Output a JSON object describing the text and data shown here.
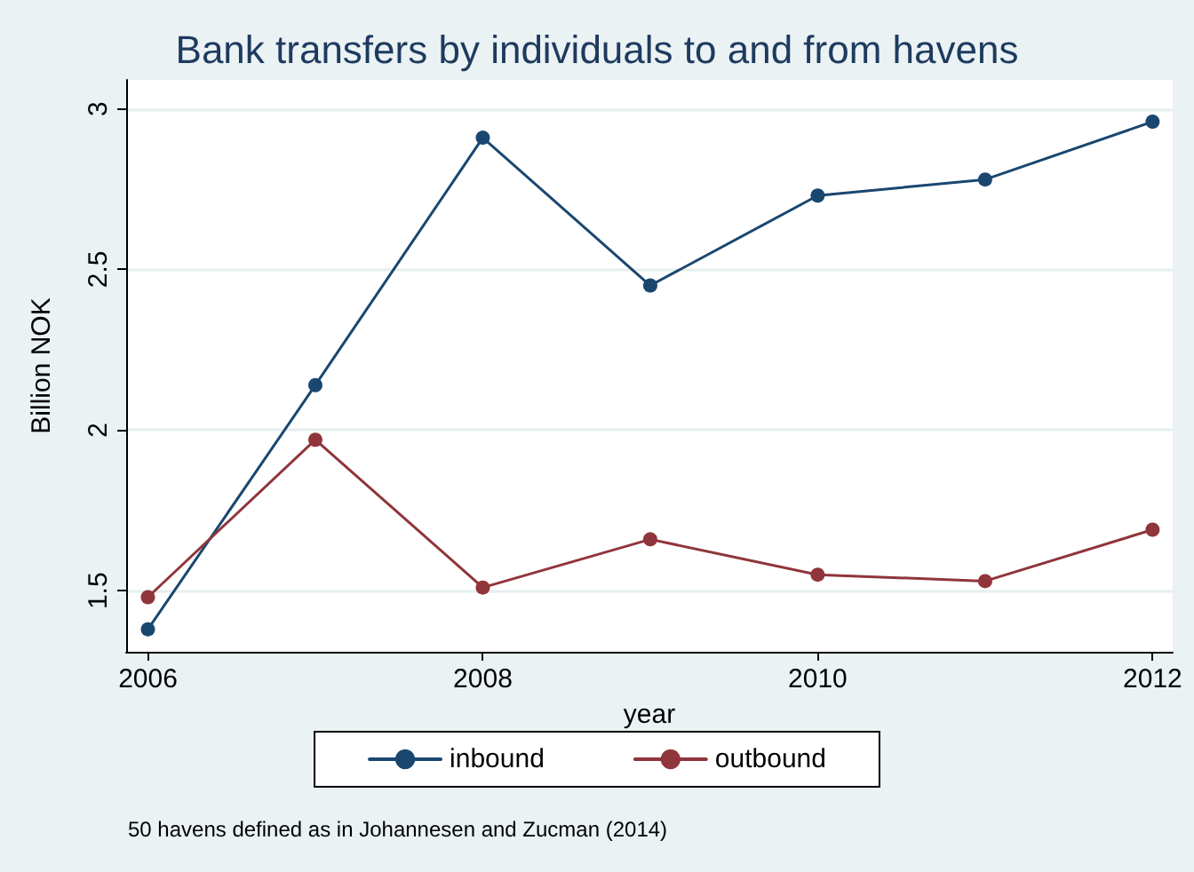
{
  "chart_data": {
    "type": "line",
    "title": "Bank transfers by individuals to and from havens",
    "xlabel": "year",
    "ylabel": "Billion NOK",
    "x": [
      2006,
      2007,
      2008,
      2009,
      2010,
      2011,
      2012
    ],
    "series": [
      {
        "name": "inbound",
        "color": "#1a476f",
        "values": [
          1.38,
          2.14,
          2.91,
          2.45,
          2.73,
          2.78,
          2.96
        ]
      },
      {
        "name": "outbound",
        "color": "#90353b",
        "values": [
          1.48,
          1.97,
          1.51,
          1.66,
          1.55,
          1.53,
          1.69
        ]
      }
    ],
    "xlim": [
      2005.87,
      2012.12
    ],
    "xticks": [
      2006,
      2008,
      2010,
      2012
    ],
    "ylim": [
      1.31,
      3.09
    ],
    "yticks": [
      1.5,
      2,
      2.5,
      3
    ],
    "grid": "y",
    "legend": "bottom",
    "marker": "circle",
    "line_style": "solid",
    "annotations": [
      "50 havens defined as in Johannesen and Zucman (2014)"
    ]
  }
}
